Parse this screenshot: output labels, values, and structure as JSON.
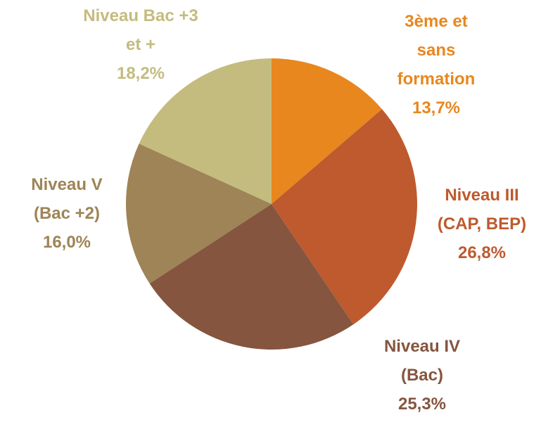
{
  "chart_data": {
    "type": "pie",
    "categories": [
      "3ème et sans formation",
      "Niveau III (CAP, BEP)",
      "Niveau IV (Bac)",
      "Niveau V (Bac +2)",
      "Niveau Bac +3 et +"
    ],
    "values": [
      13.7,
      26.8,
      25.3,
      16.0,
      18.2
    ],
    "value_labels": [
      "13,7%",
      "26,8%",
      "25,3%",
      "16,0%",
      "18,2%"
    ],
    "colors": [
      "#e8871e",
      "#be5a2e",
      "#85553f",
      "#9e8456",
      "#c4bc7e"
    ]
  }
}
